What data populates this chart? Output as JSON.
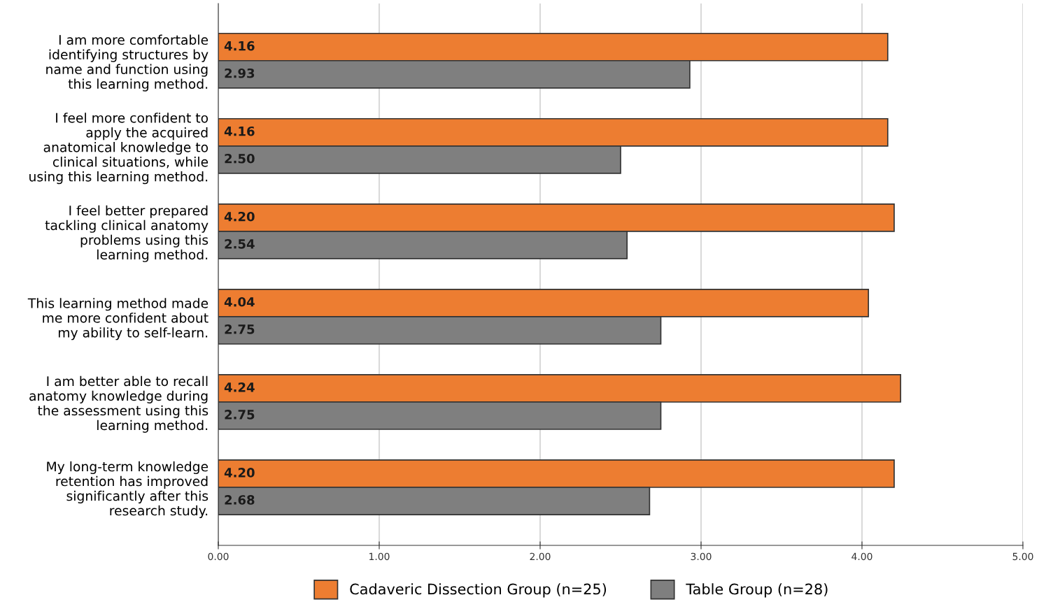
{
  "chart_data": {
    "type": "bar",
    "orientation": "horizontal",
    "categories": [
      "I am more comfortable\nidentifying structures by\nname and function using\nthis learning method.",
      "I feel more confident to\napply the acquired\nanatomical knowledge to\nclinical situations, while\nusing this learning method.",
      "I feel better prepared\ntackling clinical anatomy\nproblems using this\nlearning method.",
      "This learning method made\nme more confident about\nmy ability to self-learn.",
      "I am better able to recall\nanatomy knowledge during\nthe assessment using this\nlearning method.",
      "My long-term knowledge\nretention has improved\nsignificantly after this\nresearch study."
    ],
    "series": [
      {
        "name": "Cadaveric Dissection Group (n=25)",
        "color": "#ed7d31",
        "values": [
          4.16,
          4.16,
          4.2,
          4.04,
          4.24,
          4.2
        ],
        "value_labels": [
          "4.16",
          "4.16",
          "4.20",
          "4.04",
          "4.24",
          "4.20"
        ]
      },
      {
        "name": "Table Group (n=28)",
        "color": "#7f7f7f",
        "values": [
          2.93,
          2.5,
          2.54,
          2.75,
          2.75,
          2.68
        ],
        "value_labels": [
          "2.93",
          "2.50",
          "2.54",
          "2.75",
          "2.75",
          "2.68"
        ]
      }
    ],
    "xlim": [
      0,
      5
    ],
    "xticks": [
      {
        "value": 0,
        "label": "0.00"
      },
      {
        "value": 1,
        "label": "1.00"
      },
      {
        "value": 2,
        "label": "2.00"
      },
      {
        "value": 3,
        "label": "3.00"
      },
      {
        "value": 4,
        "label": "4.00"
      },
      {
        "value": 5,
        "label": "5.00"
      }
    ],
    "grid": "x",
    "legend": "bottom"
  }
}
